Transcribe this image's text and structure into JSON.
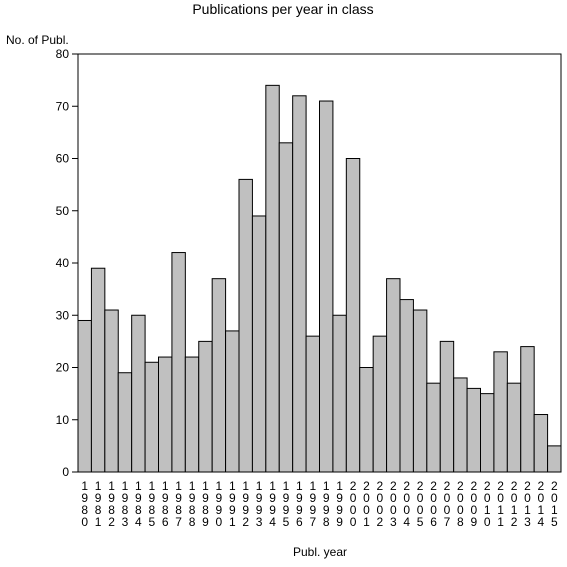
{
  "chart_data": {
    "type": "bar",
    "title": "Publications per year in class",
    "ylabel": "No. of Publ.",
    "xlabel": "Publ. year",
    "ylim": [
      0,
      80
    ],
    "yticks": [
      0,
      10,
      20,
      30,
      40,
      50,
      60,
      70,
      80
    ],
    "grid": false,
    "bar_color": "#c0c0c0",
    "categories": [
      "1980",
      "1981",
      "1982",
      "1983",
      "1984",
      "1985",
      "1986",
      "1987",
      "1988",
      "1989",
      "1990",
      "1991",
      "1992",
      "1993",
      "1994",
      "1995",
      "1996",
      "1997",
      "1998",
      "1999",
      "2000",
      "2001",
      "2002",
      "2003",
      "2004",
      "2005",
      "2006",
      "2007",
      "2008",
      "2009",
      "2010",
      "2011",
      "2012",
      "2013",
      "2014",
      "2015"
    ],
    "values": [
      29,
      39,
      31,
      19,
      30,
      21,
      22,
      42,
      22,
      25,
      37,
      27,
      56,
      49,
      74,
      63,
      72,
      26,
      71,
      30,
      60,
      20,
      26,
      37,
      33,
      31,
      17,
      25,
      18,
      16,
      15,
      23,
      17,
      24,
      11,
      5
    ]
  }
}
